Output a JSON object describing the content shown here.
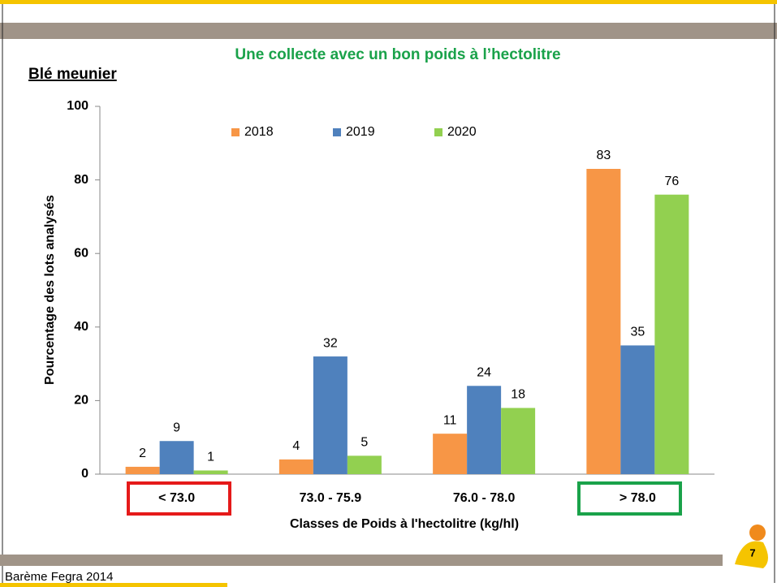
{
  "slide": {
    "heading": "Une collecte avec un bon poids à l’hectolitre",
    "section": "Blé meunier",
    "footer": "Barème Fegra 2014",
    "page_number": "7"
  },
  "chart_data": {
    "type": "bar",
    "categories": [
      "< 73.0",
      "73.0 - 75.9",
      "76.0 - 78.0",
      "> 78.0"
    ],
    "series": [
      {
        "name": "2018",
        "color": "#f79646",
        "values": [
          2,
          4,
          11,
          83
        ]
      },
      {
        "name": "2019",
        "color": "#4f81bd",
        "values": [
          9,
          32,
          24,
          35
        ]
      },
      {
        "name": "2020",
        "color": "#92d050",
        "values": [
          1,
          5,
          18,
          76
        ]
      }
    ],
    "ylabel": "Pourcentage des lots analysés",
    "xlabel": "Classes de Poids à l'hectolitre (kg/hl)",
    "ylim": [
      0,
      100
    ],
    "yticks": [
      0,
      20,
      40,
      60,
      80,
      100
    ],
    "grid": false,
    "legend": "top"
  }
}
